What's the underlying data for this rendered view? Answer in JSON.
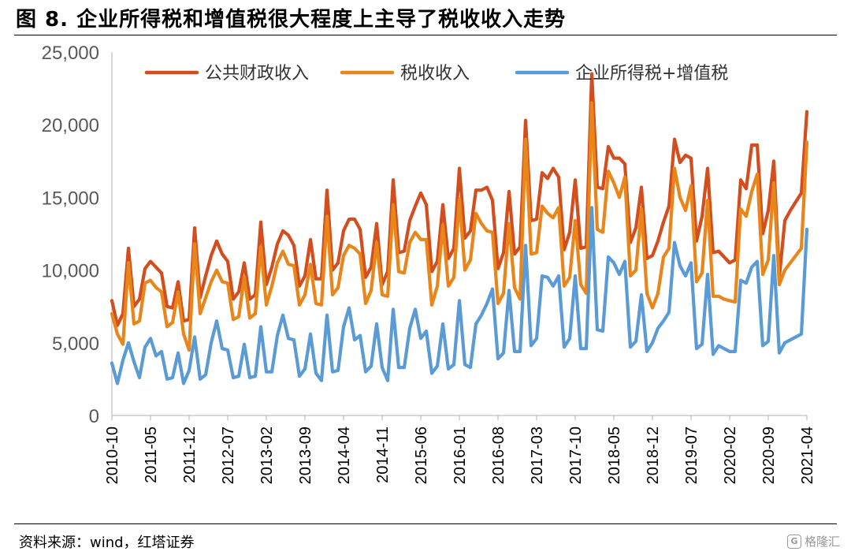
{
  "figure": {
    "title": "图 8. 企业所得税和增值税很大程度上主导了税收收入走势",
    "source": "资料来源：wind，红塔证券",
    "watermark": "格隆汇"
  },
  "chart_data": {
    "type": "line",
    "xlabel": "",
    "ylabel": "",
    "ylim": [
      0,
      25000
    ],
    "yticks": [
      "0",
      "5,000",
      "10,000",
      "15,000",
      "20,000",
      "25,000"
    ],
    "grid": false,
    "legend_position": "top",
    "x_start": "2010-10",
    "x_end": "2021-04",
    "x_tick_labels": [
      "2010-10",
      "2011-05",
      "2011-12",
      "2012-07",
      "2013-02",
      "2013-09",
      "2014-04",
      "2014-11",
      "2015-06",
      "2016-01",
      "2016-08",
      "2017-03",
      "2017-10",
      "2018-05",
      "2018-12",
      "2019-07",
      "2020-02",
      "2020-09",
      "2021-04"
    ],
    "colors": {
      "fiscal": "#D24E1F",
      "tax": "#E8861B",
      "cit_vat": "#5B9BD5"
    },
    "series": [
      {
        "name": "公共财政收入",
        "color": "#D24E1F",
        "values": [
          7900,
          6200,
          7000,
          11500,
          7500,
          8000,
          10100,
          10600,
          10200,
          9800,
          7500,
          7400,
          9200,
          6500,
          6600,
          12900,
          8100,
          9600,
          11000,
          12000,
          11100,
          10600,
          8000,
          8500,
          10500,
          8000,
          8300,
          13300,
          9000,
          10200,
          11800,
          12700,
          12400,
          11700,
          8900,
          9600,
          12100,
          9400,
          9400,
          15500,
          10000,
          10500,
          12700,
          13500,
          13500,
          12800,
          9500,
          10200,
          13200,
          9000,
          9900,
          16200,
          11200,
          11300,
          13400,
          14400,
          15300,
          14500,
          9900,
          10600,
          14500,
          10800,
          11500,
          17000,
          12200,
          12700,
          15500,
          15500,
          15700,
          14800,
          10100,
          11200,
          15400,
          11100,
          11600,
          20300,
          13400,
          13500,
          16700,
          16300,
          17000,
          16400,
          11400,
          12600,
          16200,
          11500,
          11600,
          23500,
          15700,
          15600,
          18500,
          17700,
          17700,
          17300,
          11900,
          12900,
          15700,
          10800,
          11000,
          12000,
          13300,
          14400,
          19000,
          17400,
          17900,
          17700,
          12000,
          13700,
          17000,
          11200,
          11300,
          10900,
          10500,
          10700,
          16200,
          15600,
          18600,
          18600,
          12500,
          14100,
          17500,
          9500,
          13400,
          14100,
          14700,
          15300,
          20900
        ]
      },
      {
        "name": "税收收入",
        "color": "#E8861B",
        "values": [
          7000,
          5600,
          4900,
          10500,
          6300,
          6500,
          9100,
          9300,
          8800,
          8500,
          6100,
          6400,
          8500,
          5600,
          4500,
          11800,
          7000,
          8100,
          9200,
          10000,
          9200,
          9100,
          6600,
          6800,
          9500,
          6700,
          7000,
          11600,
          7600,
          8900,
          10500,
          11300,
          10400,
          10300,
          7600,
          8300,
          10400,
          7700,
          7600,
          13700,
          8300,
          8800,
          11000,
          11700,
          11500,
          11100,
          7700,
          8600,
          11900,
          8300,
          8200,
          14500,
          9900,
          9800,
          11900,
          12600,
          12100,
          12100,
          7600,
          8900,
          13100,
          8900,
          9500,
          14900,
          10000,
          10700,
          13900,
          13200,
          12700,
          12600,
          7700,
          8400,
          13200,
          8800,
          8000,
          19000,
          11100,
          11200,
          14400,
          13900,
          13600,
          14300,
          8900,
          9500,
          13400,
          9000,
          8400,
          21500,
          12800,
          12600,
          16800,
          16000,
          15000,
          16400,
          9600,
          10000,
          14200,
          8400,
          7400,
          8400,
          10900,
          11500,
          17000,
          15000,
          14100,
          15800,
          9200,
          9800,
          14800,
          8200,
          8200,
          8000,
          7900,
          7800,
          14200,
          13700,
          15400,
          16600,
          9700,
          10700,
          16000,
          9000,
          10000,
          10500,
          11000,
          11500,
          18800
        ]
      },
      {
        "name": "企业所得税+增值税",
        "color": "#5B9BD5",
        "values": [
          3600,
          2200,
          3800,
          5000,
          3700,
          2600,
          4700,
          5300,
          4100,
          4400,
          2500,
          2600,
          4300,
          2200,
          3100,
          5400,
          2500,
          2800,
          5000,
          6500,
          4600,
          4500,
          2600,
          2700,
          4900,
          2600,
          2700,
          6100,
          3000,
          3000,
          5500,
          6900,
          5300,
          5200,
          2700,
          3200,
          5600,
          2900,
          2400,
          6900,
          3000,
          3100,
          6100,
          7400,
          5200,
          5500,
          3000,
          3400,
          6300,
          3300,
          2400,
          7300,
          3300,
          3300,
          6000,
          7300,
          5300,
          5800,
          2900,
          3400,
          6300,
          3200,
          3500,
          7900,
          3500,
          3300,
          6300,
          6900,
          7700,
          8700,
          3900,
          4300,
          8600,
          4400,
          4400,
          11700,
          4800,
          5300,
          9600,
          9500,
          8900,
          9600,
          4700,
          5300,
          9600,
          4600,
          4600,
          14300,
          5900,
          5800,
          10900,
          10500,
          9700,
          10600,
          4700,
          5100,
          8300,
          4400,
          5000,
          6000,
          6500,
          7100,
          11900,
          10300,
          9600,
          10500,
          4600,
          4900,
          9700,
          4200,
          4800,
          4600,
          4400,
          4400,
          9300,
          9100,
          10200,
          10600,
          4800,
          5100,
          11000,
          4300,
          5000,
          5200,
          5400,
          5600,
          12800
        ]
      }
    ]
  }
}
